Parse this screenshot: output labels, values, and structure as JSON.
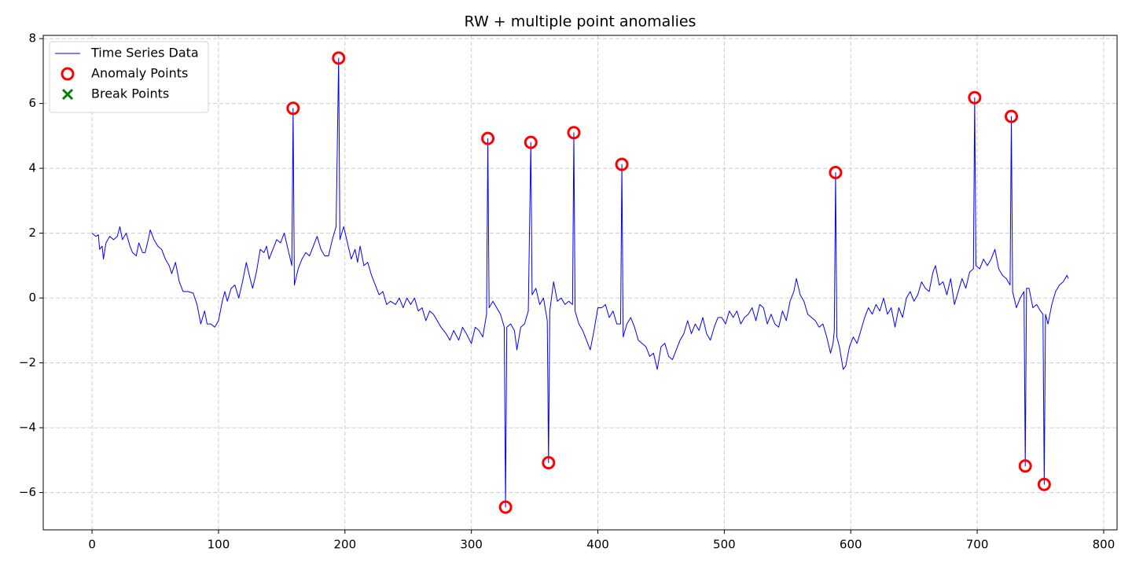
{
  "chart_data": {
    "type": "line",
    "title": "RW + multiple point anomalies",
    "xlim": [
      -38.6,
      810.6
    ],
    "ylim": [
      -7.15,
      8.1
    ],
    "xticks": [
      0,
      100,
      200,
      300,
      400,
      500,
      600,
      700,
      800
    ],
    "yticks": [
      {
        "value": -6,
        "label": "−6"
      },
      {
        "value": -4,
        "label": "−4"
      },
      {
        "value": -2,
        "label": "−2"
      },
      0,
      2,
      4,
      6,
      8
    ],
    "grid": true,
    "legend": "upper-left",
    "series": [
      {
        "name": "Time Series Data",
        "type": "line",
        "color": "#0000ff",
        "x": [
          0,
          3,
          5,
          6,
          8,
          9,
          11,
          14,
          17,
          20,
          22,
          24,
          27,
          30,
          32,
          35,
          37,
          40,
          42,
          45,
          46,
          49,
          52,
          55,
          58,
          61,
          63,
          66,
          69,
          72,
          76,
          80,
          83,
          86,
          89,
          91,
          94,
          97,
          100,
          103,
          105,
          107,
          110,
          113,
          116,
          119,
          122,
          125,
          127,
          130,
          133,
          136,
          138,
          140,
          143,
          146,
          149,
          152,
          155,
          158,
          159,
          160,
          163,
          166,
          169,
          172,
          175,
          178,
          181,
          184,
          187,
          190,
          193,
          195,
          196,
          199,
          202,
          205,
          208,
          210,
          212,
          215,
          218,
          221,
          224,
          227,
          230,
          233,
          236,
          240,
          243,
          246,
          249,
          252,
          255,
          258,
          261,
          264,
          267,
          270,
          273,
          276,
          280,
          283,
          286,
          290,
          293,
          296,
          300,
          303,
          306,
          309,
          312,
          313,
          314,
          317,
          320,
          323,
          326,
          327,
          328,
          331,
          334,
          336,
          339,
          342,
          345,
          347,
          348,
          351,
          354,
          357,
          360,
          361,
          362,
          365,
          368,
          371,
          374,
          377,
          380,
          381,
          382,
          385,
          388,
          391,
          394,
          397,
          400,
          403,
          406,
          409,
          412,
          415,
          418,
          419,
          420,
          423,
          426,
          429,
          432,
          435,
          438,
          441,
          444,
          447,
          450,
          453,
          456,
          459,
          462,
          465,
          468,
          471,
          474,
          477,
          480,
          483,
          486,
          489,
          492,
          495,
          498,
          501,
          504,
          507,
          510,
          513,
          516,
          519,
          522,
          525,
          528,
          531,
          534,
          537,
          540,
          543,
          546,
          549,
          552,
          555,
          557,
          560,
          563,
          566,
          569,
          572,
          575,
          578,
          581,
          584,
          586,
          587,
          588,
          589,
          591,
          594,
          596,
          599,
          602,
          605,
          608,
          611,
          614,
          617,
          620,
          623,
          626,
          629,
          632,
          635,
          638,
          641,
          644,
          647,
          650,
          653,
          656,
          659,
          662,
          665,
          667,
          670,
          673,
          676,
          679,
          682,
          685,
          688,
          691,
          694,
          697,
          698,
          699,
          702,
          705,
          708,
          711,
          714,
          717,
          720,
          723,
          726,
          727,
          728,
          731,
          734,
          737,
          738,
          739,
          741,
          744,
          747,
          750,
          752,
          753,
          754,
          756,
          759,
          762,
          765,
          768,
          771,
          772
        ],
        "values": [
          2.0,
          1.9,
          1.95,
          1.5,
          1.6,
          1.2,
          1.7,
          1.9,
          1.8,
          1.9,
          2.2,
          1.8,
          2.0,
          1.6,
          1.4,
          1.3,
          1.7,
          1.4,
          1.4,
          1.9,
          2.1,
          1.8,
          1.6,
          1.5,
          1.2,
          1.0,
          0.75,
          1.1,
          0.5,
          0.2,
          0.2,
          0.15,
          -0.2,
          -0.8,
          -0.4,
          -0.8,
          -0.8,
          -0.9,
          -0.7,
          -0.1,
          0.2,
          -0.1,
          0.3,
          0.4,
          0.0,
          0.5,
          1.1,
          0.6,
          0.3,
          0.8,
          1.5,
          1.4,
          1.6,
          1.2,
          1.5,
          1.8,
          1.7,
          2.0,
          1.5,
          1.0,
          5.85,
          0.4,
          0.9,
          1.2,
          1.4,
          1.3,
          1.6,
          1.9,
          1.5,
          1.3,
          1.3,
          1.8,
          2.2,
          7.4,
          1.8,
          2.2,
          1.7,
          1.2,
          1.5,
          1.1,
          1.6,
          1.0,
          1.1,
          0.7,
          0.4,
          0.1,
          0.2,
          -0.2,
          -0.1,
          -0.2,
          0.0,
          -0.3,
          0.0,
          -0.2,
          0.0,
          -0.4,
          -0.3,
          -0.7,
          -0.4,
          -0.5,
          -0.7,
          -0.9,
          -1.1,
          -1.3,
          -1.0,
          -1.3,
          -0.9,
          -1.1,
          -1.4,
          -0.9,
          -1.0,
          -1.2,
          -0.5,
          4.92,
          -0.3,
          -0.1,
          -0.3,
          -0.5,
          -0.9,
          -6.45,
          -0.9,
          -0.8,
          -1.0,
          -1.6,
          -0.9,
          -0.8,
          -0.4,
          4.8,
          0.1,
          0.3,
          -0.2,
          0.0,
          -0.7,
          -5.08,
          -0.4,
          0.5,
          -0.1,
          0.0,
          -0.2,
          -0.1,
          -0.2,
          5.1,
          -0.4,
          -0.8,
          -1.0,
          -1.3,
          -1.6,
          -1.0,
          -0.3,
          -0.3,
          -0.2,
          -0.6,
          -0.4,
          -0.8,
          -0.8,
          4.12,
          -1.2,
          -0.8,
          -0.6,
          -0.9,
          -1.3,
          -1.4,
          -1.5,
          -1.8,
          -1.7,
          -2.2,
          -1.5,
          -1.4,
          -1.8,
          -1.9,
          -1.6,
          -1.3,
          -1.1,
          -0.7,
          -1.1,
          -0.8,
          -1.0,
          -0.6,
          -1.1,
          -1.3,
          -0.9,
          -0.6,
          -0.6,
          -0.8,
          -0.4,
          -0.6,
          -0.4,
          -0.8,
          -0.6,
          -0.5,
          -0.3,
          -0.7,
          -0.2,
          -0.3,
          -0.8,
          -0.5,
          -0.8,
          -0.9,
          -0.4,
          -0.7,
          -0.1,
          0.2,
          0.6,
          0.1,
          -0.1,
          -0.5,
          -0.6,
          -0.7,
          -0.9,
          -0.8,
          -1.2,
          -1.7,
          -1.4,
          -1.0,
          3.87,
          -1.2,
          -1.5,
          -2.2,
          -2.1,
          -1.5,
          -1.2,
          -1.4,
          -1.0,
          -0.6,
          -0.3,
          -0.5,
          -0.2,
          -0.4,
          0.0,
          -0.5,
          -0.3,
          -0.9,
          -0.3,
          -0.6,
          0.0,
          0.2,
          -0.1,
          0.1,
          0.5,
          0.3,
          0.2,
          0.8,
          1.0,
          0.4,
          0.5,
          0.1,
          0.6,
          -0.2,
          0.2,
          0.6,
          0.3,
          0.8,
          0.9,
          6.18,
          1.0,
          0.9,
          1.2,
          1.0,
          1.2,
          1.5,
          0.9,
          0.7,
          0.6,
          0.4,
          5.6,
          0.2,
          -0.3,
          0.0,
          0.2,
          -5.18,
          0.3,
          0.3,
          -0.3,
          -0.2,
          -0.4,
          -0.5,
          -5.75,
          -0.5,
          -0.8,
          -0.2,
          0.2,
          0.4,
          0.5,
          0.7,
          0.6
        ]
      },
      {
        "name": "Anomaly Points",
        "type": "scatter",
        "marker": "o",
        "color": "#ff0000",
        "x": [
          159,
          195,
          313,
          327,
          347,
          361,
          381,
          419,
          588,
          698,
          727,
          738,
          753
        ],
        "values": [
          5.85,
          7.4,
          4.92,
          -6.45,
          4.8,
          -5.08,
          5.1,
          4.12,
          3.87,
          6.18,
          5.6,
          -5.18,
          -5.75
        ]
      },
      {
        "name": "Break Points",
        "type": "scatter",
        "marker": "x",
        "color": "#008000",
        "x": [],
        "values": []
      }
    ]
  }
}
